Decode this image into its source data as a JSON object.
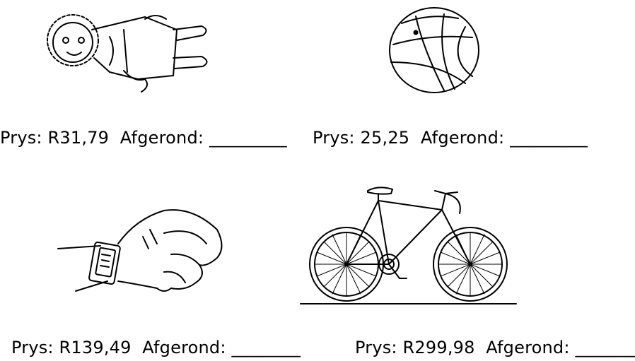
{
  "items": [
    {
      "prefix": "Prys: ",
      "price": "R31,79",
      "sep": "  Afgerond: ",
      "blank": "_________"
    },
    {
      "prefix": "Prys: ",
      "price": "25,25",
      "sep": "  Afgerond: ",
      "blank": "_________"
    },
    {
      "prefix": "Prys: ",
      "price": "R139,49",
      "sep": "  Afgerond: ",
      "blank": "________"
    },
    {
      "prefix": "Prys: ",
      "price": "R299,98",
      "sep": "  Afgerond: ",
      "blank": "_______"
    }
  ]
}
